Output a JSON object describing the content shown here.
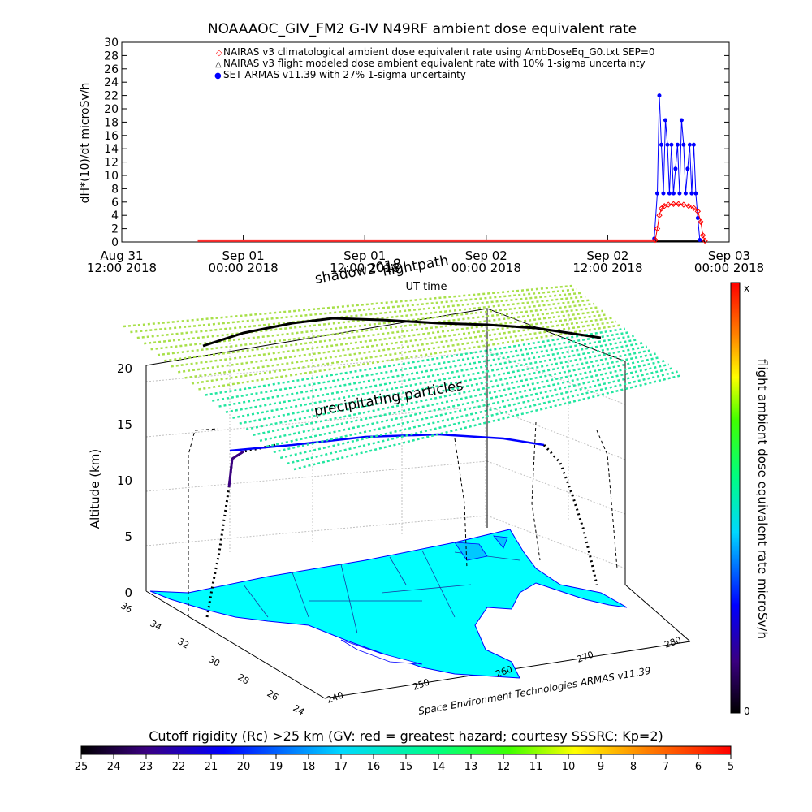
{
  "top_chart": {
    "title": "NOAAAOC_GIV_FM2 G-IV    N49RF  ambient dose equivalent rate",
    "ylabel": "dH*(10)/dt microSv/h",
    "legend": [
      {
        "symbol": "◇",
        "label": "NAIRAS v3 climatological ambient dose equivalent rate using AmbDoseEq_G0.txt SEP=0",
        "color": "#ff0000"
      },
      {
        "symbol": "△",
        "label": "NAIRAS v3 flight modeled dose ambient equivalent rate with 10% 1-sigma uncertainty",
        "color": "#000000"
      },
      {
        "symbol": "●",
        "label": "SET ARMAS v11.39 with 27% 1-sigma uncertainty",
        "color": "#0000ff"
      }
    ],
    "xticks": [
      {
        "line1": "Aug 31",
        "line2": "12:00 2018"
      },
      {
        "line1": "Sep 01",
        "line2": "00:00 2018"
      },
      {
        "line1": "Sep 01",
        "line2": "12:00 2018"
      },
      {
        "line1": "Sep 02",
        "line2": "00:00 2018"
      },
      {
        "line1": "Sep 02",
        "line2": "12:00 2018"
      },
      {
        "line1": "Sep 03",
        "line2": "00:00 2018"
      }
    ],
    "xlabel": "UT time",
    "yticks": [
      "0",
      "2",
      "4",
      "6",
      "8",
      "10",
      "12",
      "14",
      "16",
      "18",
      "20",
      "22",
      "24",
      "26",
      "28",
      "30"
    ]
  },
  "chart_data": {
    "type": "scatter",
    "x_unit": "hours since Aug 31 12:00 UT",
    "xlim": [
      0,
      60
    ],
    "ylim": [
      0,
      30
    ],
    "series": [
      {
        "name": "NAIRAS v3 climatological ambient dose equivalent rate using AmbDoseEq_G0.txt SEP=0",
        "color": "#ff0000",
        "baseline": {
          "x_start": 7.5,
          "x_end": 52.7,
          "y": 0.2
        },
        "x": [
          52.7,
          52.9,
          53.1,
          53.3,
          53.6,
          54.0,
          54.5,
          55.0,
          55.5,
          56.0,
          56.5,
          56.9,
          57.2,
          57.4,
          57.6
        ],
        "y": [
          0.3,
          2.0,
          4.0,
          5.0,
          5.4,
          5.6,
          5.7,
          5.7,
          5.6,
          5.4,
          5.1,
          4.6,
          3.0,
          1.0,
          0.2
        ]
      },
      {
        "name": "NAIRAS v3 flight modeled dose ambient equivalent rate with 10% 1-sigma uncertainty",
        "color": "#000000",
        "x": [
          52.7,
          57.6
        ],
        "y": [
          0.1,
          0.1
        ]
      },
      {
        "name": "SET ARMAS v11.39 with 27% 1-sigma uncertainty",
        "color": "#0000ff",
        "x": [
          52.6,
          52.9,
          53.1,
          53.3,
          53.5,
          53.7,
          53.9,
          54.1,
          54.3,
          54.5,
          54.7,
          54.9,
          55.1,
          55.3,
          55.5,
          55.7,
          55.9,
          56.1,
          56.3,
          56.5,
          56.7,
          56.9,
          57.1
        ],
        "y": [
          0.5,
          7.3,
          22.0,
          14.6,
          7.3,
          18.3,
          14.6,
          7.3,
          14.6,
          7.3,
          11.0,
          14.6,
          7.3,
          18.3,
          14.6,
          7.3,
          11.0,
          14.6,
          7.3,
          14.6,
          7.3,
          3.6,
          0.3
        ]
      }
    ]
  },
  "bottom_chart": {
    "shadow_label": "shadow2018",
    "flightpath_label": "flightpath",
    "precip_label": "precipitating particles",
    "zlabel": "Altitude (km)",
    "zticks": [
      "0",
      "5",
      "10",
      "15",
      "20"
    ],
    "lat_ticks": [
      "36",
      "34",
      "32",
      "30",
      "28",
      "26",
      "24"
    ],
    "lon_ticks": [
      "240",
      "250",
      "260",
      "270",
      "280"
    ],
    "credit": "Space Environment Technologies ARMAS v11.39",
    "right_bar_label": "flight ambient dose equivalent rate microSv/h",
    "right_bar_top": "x",
    "right_bar_bottom": "0"
  },
  "cutoff_bar": {
    "title": "Cutoff rigidity (Rc) >25 km (GV: red = greatest hazard; courtesy SSSRC; Kp=2)",
    "ticks": [
      "25",
      "24",
      "23",
      "22",
      "21",
      "20",
      "19",
      "18",
      "17",
      "16",
      "15",
      "14",
      "13",
      "12",
      "11",
      "10",
      "9",
      "8",
      "7",
      "6",
      "5"
    ]
  },
  "colors": {
    "grid": "#c0c0c0",
    "map_fill": "#00ffff",
    "grid_top": "#a8e04a",
    "grid_low": "#22e6a0"
  }
}
